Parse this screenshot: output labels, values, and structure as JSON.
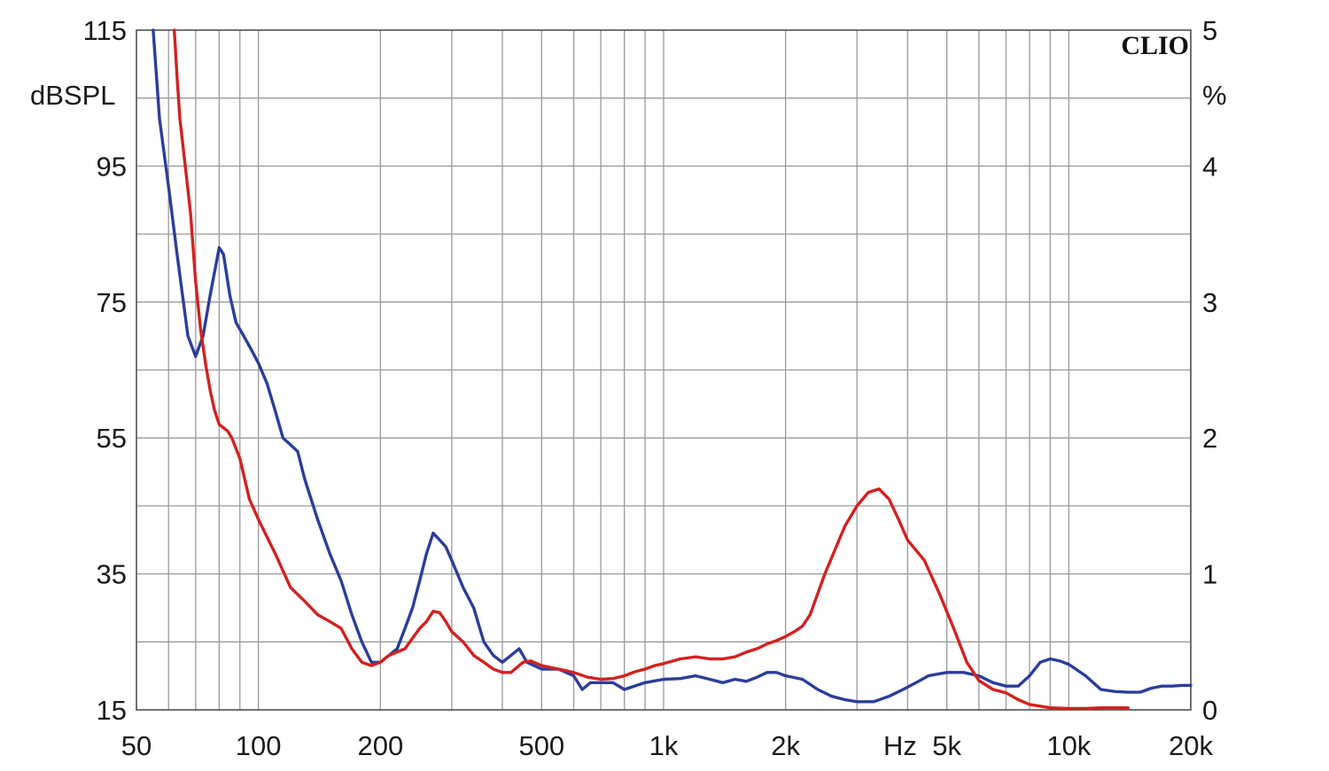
{
  "chart_data": {
    "type": "line",
    "brand": "CLIO",
    "x_scale": "log",
    "xlim": [
      50,
      20000
    ],
    "x_unit_label": "Hz",
    "x_ticks": [
      {
        "value": 50,
        "label": "50"
      },
      {
        "value": 100,
        "label": "100"
      },
      {
        "value": 200,
        "label": "200"
      },
      {
        "value": 500,
        "label": "500"
      },
      {
        "value": 1000,
        "label": "1k"
      },
      {
        "value": 2000,
        "label": "2k"
      },
      {
        "value": 5000,
        "label": "5k"
      },
      {
        "value": 10000,
        "label": "10k"
      },
      {
        "value": 20000,
        "label": "20k"
      }
    ],
    "x_gridlines": [
      50,
      60,
      70,
      80,
      90,
      100,
      200,
      300,
      400,
      500,
      600,
      700,
      800,
      900,
      1000,
      2000,
      3000,
      4000,
      5000,
      6000,
      7000,
      8000,
      9000,
      10000,
      20000
    ],
    "y_left": {
      "label": "dBSPL",
      "ylim": [
        15,
        115
      ],
      "ticks": [
        "115",
        "95",
        "75",
        "55",
        "35",
        "15"
      ],
      "tick_values": [
        115,
        95,
        75,
        55,
        35,
        15
      ]
    },
    "y_right": {
      "label": "%",
      "ylim": [
        0,
        5
      ],
      "ticks": [
        "5",
        "4",
        "3",
        "2",
        "1",
        "0"
      ],
      "tick_values": [
        5,
        4,
        3,
        2,
        1,
        0
      ]
    },
    "y_gridlines": [
      15,
      25,
      35,
      45,
      55,
      65,
      75,
      85,
      95,
      105,
      115
    ],
    "grid": true,
    "series": [
      {
        "color": "#2b3d9c",
        "points": [
          [
            55,
            115
          ],
          [
            57,
            102
          ],
          [
            60,
            92
          ],
          [
            63,
            82
          ],
          [
            67,
            70
          ],
          [
            70,
            67
          ],
          [
            73,
            70
          ],
          [
            76,
            76
          ],
          [
            80,
            83
          ],
          [
            82,
            82
          ],
          [
            85,
            76
          ],
          [
            88,
            72
          ],
          [
            92,
            70
          ],
          [
            96,
            68
          ],
          [
            100,
            66
          ],
          [
            105,
            63
          ],
          [
            110,
            59
          ],
          [
            115,
            55
          ],
          [
            120,
            54
          ],
          [
            125,
            53
          ],
          [
            130,
            49
          ],
          [
            140,
            43
          ],
          [
            150,
            38
          ],
          [
            160,
            34
          ],
          [
            170,
            29
          ],
          [
            180,
            25
          ],
          [
            190,
            22
          ],
          [
            200,
            22
          ],
          [
            210,
            23
          ],
          [
            220,
            24
          ],
          [
            230,
            27
          ],
          [
            240,
            30
          ],
          [
            250,
            34
          ],
          [
            260,
            38
          ],
          [
            270,
            41
          ],
          [
            280,
            40
          ],
          [
            290,
            39
          ],
          [
            300,
            37
          ],
          [
            320,
            33
          ],
          [
            340,
            30
          ],
          [
            360,
            25
          ],
          [
            380,
            23
          ],
          [
            400,
            22
          ],
          [
            420,
            23
          ],
          [
            440,
            24
          ],
          [
            460,
            22
          ],
          [
            500,
            21
          ],
          [
            550,
            21
          ],
          [
            600,
            20
          ],
          [
            630,
            18
          ],
          [
            660,
            19
          ],
          [
            700,
            19
          ],
          [
            750,
            19
          ],
          [
            800,
            18
          ],
          [
            900,
            19
          ],
          [
            1000,
            19.5
          ],
          [
            1100,
            19.6
          ],
          [
            1200,
            20
          ],
          [
            1300,
            19.5
          ],
          [
            1400,
            19
          ],
          [
            1500,
            19.5
          ],
          [
            1600,
            19.2
          ],
          [
            1700,
            19.8
          ],
          [
            1800,
            20.5
          ],
          [
            1900,
            20.5
          ],
          [
            2000,
            20
          ],
          [
            2200,
            19.5
          ],
          [
            2400,
            18
          ],
          [
            2600,
            17
          ],
          [
            2800,
            16.5
          ],
          [
            3000,
            16.2
          ],
          [
            3300,
            16.2
          ],
          [
            3600,
            17
          ],
          [
            3900,
            18
          ],
          [
            4200,
            19
          ],
          [
            4500,
            20
          ],
          [
            5000,
            20.5
          ],
          [
            5500,
            20.5
          ],
          [
            6000,
            20
          ],
          [
            6500,
            19
          ],
          [
            7000,
            18.5
          ],
          [
            7500,
            18.5
          ],
          [
            8000,
            20
          ],
          [
            8500,
            22
          ],
          [
            9000,
            22.5
          ],
          [
            9500,
            22.2
          ],
          [
            10000,
            21.7
          ],
          [
            11000,
            20
          ],
          [
            12000,
            18
          ],
          [
            13000,
            17.7
          ],
          [
            14000,
            17.6
          ],
          [
            15000,
            17.6
          ],
          [
            16000,
            18.2
          ],
          [
            17000,
            18.5
          ],
          [
            18000,
            18.5
          ],
          [
            19000,
            18.6
          ],
          [
            20000,
            18.6
          ]
        ]
      },
      {
        "color": "#d42020",
        "points": [
          [
            62,
            115
          ],
          [
            63,
            108
          ],
          [
            64,
            102
          ],
          [
            66,
            95
          ],
          [
            68,
            88
          ],
          [
            70,
            78
          ],
          [
            72,
            71
          ],
          [
            74,
            66
          ],
          [
            76,
            62
          ],
          [
            78,
            59
          ],
          [
            80,
            57
          ],
          [
            84,
            56
          ],
          [
            86,
            55
          ],
          [
            90,
            52
          ],
          [
            95,
            46
          ],
          [
            100,
            43
          ],
          [
            110,
            38
          ],
          [
            120,
            33
          ],
          [
            130,
            31
          ],
          [
            140,
            29
          ],
          [
            150,
            28
          ],
          [
            160,
            27
          ],
          [
            170,
            24
          ],
          [
            180,
            22
          ],
          [
            190,
            21.5
          ],
          [
            200,
            22
          ],
          [
            210,
            23
          ],
          [
            230,
            24
          ],
          [
            250,
            27
          ],
          [
            260,
            28
          ],
          [
            270,
            29.5
          ],
          [
            280,
            29.3
          ],
          [
            290,
            28
          ],
          [
            300,
            26.5
          ],
          [
            320,
            25
          ],
          [
            340,
            23
          ],
          [
            360,
            22
          ],
          [
            380,
            21
          ],
          [
            400,
            20.5
          ],
          [
            420,
            20.5
          ],
          [
            450,
            22
          ],
          [
            470,
            22.2
          ],
          [
            500,
            21.5
          ],
          [
            550,
            21
          ],
          [
            600,
            20.5
          ],
          [
            650,
            19.8
          ],
          [
            700,
            19.5
          ],
          [
            750,
            19.6
          ],
          [
            800,
            20
          ],
          [
            850,
            20.6
          ],
          [
            900,
            21
          ],
          [
            950,
            21.5
          ],
          [
            1000,
            21.8
          ],
          [
            1100,
            22.5
          ],
          [
            1200,
            22.8
          ],
          [
            1300,
            22.5
          ],
          [
            1400,
            22.5
          ],
          [
            1500,
            22.8
          ],
          [
            1600,
            23.5
          ],
          [
            1700,
            24
          ],
          [
            1800,
            24.7
          ],
          [
            1900,
            25.2
          ],
          [
            2000,
            25.8
          ],
          [
            2100,
            26.5
          ],
          [
            2200,
            27.3
          ],
          [
            2300,
            29
          ],
          [
            2500,
            35
          ],
          [
            2800,
            42
          ],
          [
            3000,
            45
          ],
          [
            3200,
            47
          ],
          [
            3400,
            47.5
          ],
          [
            3600,
            46
          ],
          [
            3800,
            43
          ],
          [
            4000,
            40
          ],
          [
            4400,
            37
          ],
          [
            4800,
            32
          ],
          [
            5200,
            27
          ],
          [
            5600,
            22
          ],
          [
            6000,
            19.3
          ],
          [
            6500,
            18
          ],
          [
            7000,
            17.5
          ],
          [
            7500,
            16.5
          ],
          [
            8000,
            15.8
          ],
          [
            9000,
            15.3
          ],
          [
            10000,
            15.2
          ],
          [
            11000,
            15.2
          ],
          [
            12000,
            15.3
          ],
          [
            13000,
            15.3
          ],
          [
            14000,
            15.3
          ]
        ]
      }
    ]
  }
}
